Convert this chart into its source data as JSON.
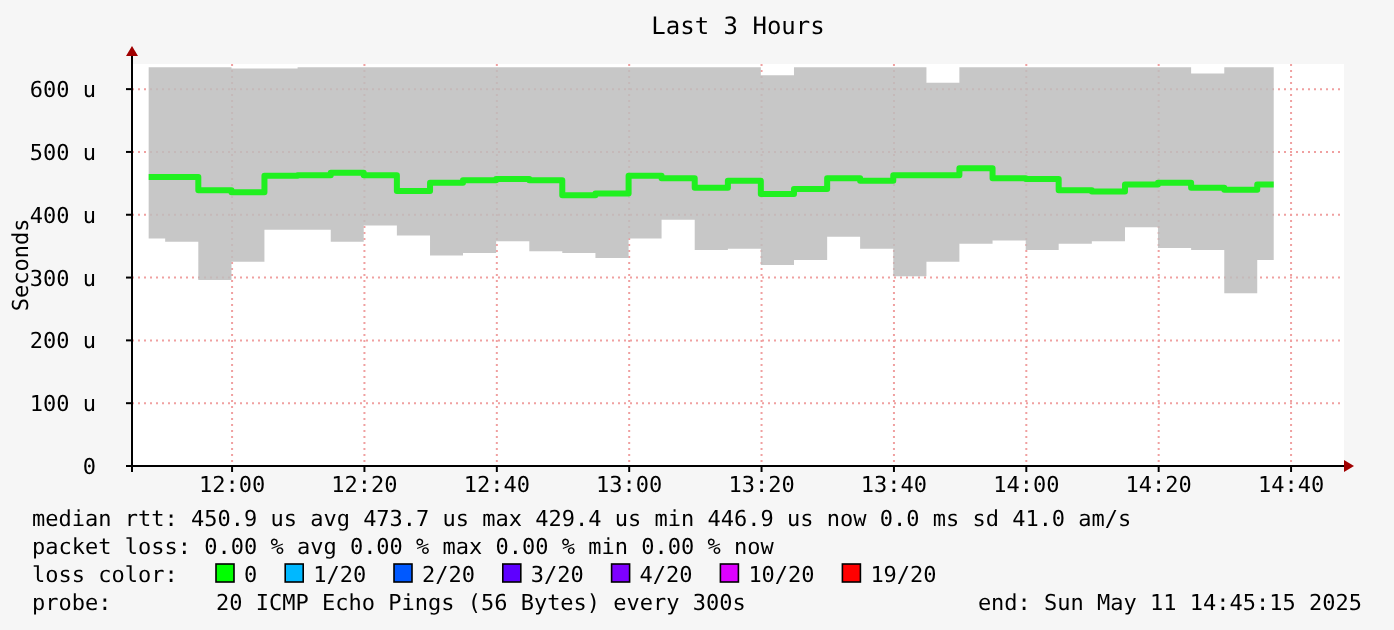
{
  "chart_data": {
    "type": "step",
    "title": "Last 3 Hours",
    "ylabel": "Seconds",
    "x": [
      11.79,
      11.873,
      11.957,
      12.04,
      12.123,
      12.207,
      12.29,
      12.373,
      12.457,
      12.54,
      12.623,
      12.707,
      12.79,
      12.873,
      12.957,
      13.04,
      13.123,
      13.207,
      13.29,
      13.373,
      13.457,
      13.54,
      13.623,
      13.707,
      13.79,
      13.873,
      13.957,
      14.04,
      14.123,
      14.207,
      14.29,
      14.373,
      14.457,
      14.54,
      14.623
    ],
    "series": [
      {
        "color": "#20f020",
        "values": [
          460,
          460,
          439,
          436,
          462,
          463,
          467,
          463,
          438,
          451,
          455,
          457,
          455,
          431,
          434,
          462,
          458,
          443,
          454,
          433,
          441,
          458,
          454,
          463,
          463,
          474,
          458,
          457,
          439,
          437,
          448,
          451,
          443,
          440,
          448
        ],
        "lower": [
          362,
          357,
          296,
          325,
          376,
          376,
          357,
          383,
          367,
          335,
          339,
          358,
          342,
          339,
          331,
          362,
          392,
          344,
          346,
          320,
          328,
          365,
          346,
          302,
          325,
          354,
          359,
          344,
          354,
          358,
          380,
          347,
          344,
          275,
          328
        ],
        "upper": [
          635,
          635,
          635,
          633,
          633,
          635,
          635,
          635,
          635,
          635,
          635,
          635,
          635,
          635,
          635,
          635,
          635,
          635,
          635,
          622,
          635,
          635,
          635,
          635,
          610,
          635,
          635,
          635,
          635,
          635,
          635,
          635,
          625,
          635,
          635
        ]
      }
    ],
    "xlim": [
      11.748,
      14.8
    ],
    "ylim": [
      0,
      640
    ],
    "xticks": [
      {
        "value": 12,
        "label": "12:00"
      },
      {
        "value": 12.3333,
        "label": "12:20"
      },
      {
        "value": 12.6667,
        "label": "12:40"
      },
      {
        "value": 13,
        "label": "13:00"
      },
      {
        "value": 13.3333,
        "label": "13:20"
      },
      {
        "value": 13.6667,
        "label": "13:40"
      },
      {
        "value": 14,
        "label": "14:00"
      },
      {
        "value": 14.3333,
        "label": "14:20"
      },
      {
        "value": 14.6667,
        "label": "14:40"
      }
    ],
    "yticks": [
      0,
      {
        "value": 100,
        "label": "100 u"
      },
      {
        "value": 200,
        "label": "200 u"
      },
      {
        "value": 300,
        "label": "300 u"
      },
      {
        "value": 400,
        "label": "400 u"
      },
      {
        "value": 500,
        "label": "500 u"
      },
      {
        "value": 600,
        "label": "600 u"
      }
    ],
    "grid": true,
    "annotations": [
      "median rtt:  450.9 us avg  473.7 us max  429.4 us min  446.9 us now  0.0 ms sd  41.0   am/s",
      "packet loss: 0.00 % avg  0.00 % max  0.00 % min  0.00 % now",
      "loss color:",
      "0",
      "1/20",
      "2/20",
      "3/20",
      "4/20",
      "10/20",
      "19/20",
      "probe:",
      "20 ICMP Echo Pings (56 Bytes) every 300s",
      "end: Sun May 11 14:45:15 2025"
    ]
  }
}
